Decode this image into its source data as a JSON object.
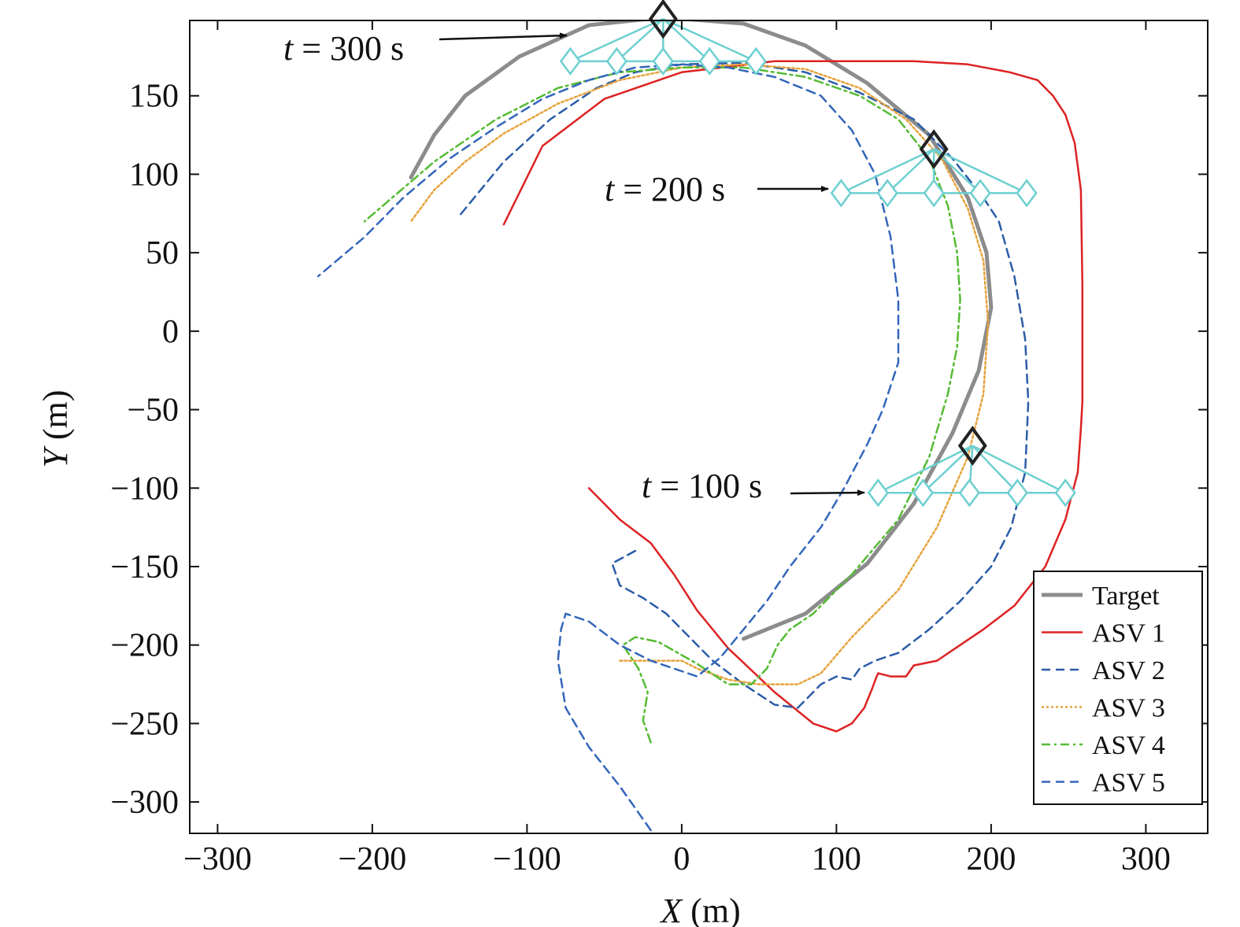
{
  "chart_data": {
    "type": "line",
    "xlabel_var": "X",
    "xlabel_unit": "(m)",
    "ylabel_var": "Y",
    "ylabel_unit": "(m)",
    "xlim": [
      -318,
      340
    ],
    "ylim": [
      -320,
      198
    ],
    "xticks": [
      -300,
      -200,
      -100,
      0,
      100,
      200,
      300
    ],
    "yticks": [
      -300,
      -250,
      -200,
      -150,
      -100,
      -50,
      0,
      50,
      100,
      150
    ],
    "xtick_labels": [
      "−300",
      "−200",
      "−100",
      "0",
      "100",
      "200",
      "300"
    ],
    "ytick_labels": [
      "−300",
      "−250",
      "−200",
      "−150",
      "−100",
      "−50",
      "0",
      "50",
      "100",
      "150"
    ],
    "legend_position": "bottom-right",
    "grid": false,
    "series": [
      {
        "name": "Target",
        "color": "#8c8c8c",
        "dash": "",
        "width": 5,
        "x": [
          40,
          80,
          120,
          150,
          175,
          192,
          200,
          197,
          185,
          160,
          120,
          80,
          40,
          -12,
          -60,
          -105,
          -140,
          -160,
          -175
        ],
        "y": [
          -196,
          -180,
          -148,
          -110,
          -65,
          -25,
          15,
          50,
          85,
          125,
          158,
          182,
          196,
          200,
          195,
          175,
          150,
          125,
          98
        ]
      },
      {
        "name": "ASV 1",
        "color": "#dd2222",
        "dash": "",
        "width": 2.5,
        "x": [
          -60,
          -40,
          -20,
          -5,
          10,
          30,
          60,
          85,
          100,
          110,
          118,
          123,
          126,
          127,
          135,
          145,
          150,
          155,
          165,
          180,
          195,
          215,
          235,
          248,
          256,
          258,
          259,
          259,
          259,
          258,
          254,
          248,
          240,
          230,
          212,
          185,
          150,
          110,
          60,
          0,
          -50,
          -90,
          -115
        ],
        "y": [
          -100,
          -120,
          -135,
          -155,
          -178,
          -202,
          -230,
          -250,
          -255,
          -250,
          -240,
          -228,
          -220,
          -218,
          -220,
          -220,
          -213,
          -212,
          -210,
          -200,
          -190,
          -175,
          -150,
          -120,
          -90,
          -62,
          -45,
          -20,
          30,
          90,
          120,
          138,
          150,
          160,
          165,
          170,
          172,
          172,
          172,
          165,
          148,
          118,
          68
        ]
      },
      {
        "name": "ASV 2",
        "color": "#2a5ca8",
        "dash": "11,7",
        "width": 2.5,
        "x": [
          -30,
          -45,
          -40,
          -25,
          -10,
          5,
          20,
          40,
          60,
          75,
          90,
          100,
          110,
          115,
          125,
          140,
          160,
          180,
          200,
          213,
          222,
          224,
          222,
          215,
          205,
          195,
          175,
          150,
          115,
          80,
          40,
          0,
          -30,
          -55,
          -85,
          -115,
          -145
        ],
        "y": [
          -140,
          -148,
          -162,
          -170,
          -180,
          -195,
          -210,
          -225,
          -238,
          -240,
          -225,
          -220,
          -222,
          -215,
          -210,
          -205,
          -190,
          -172,
          -150,
          -125,
          -90,
          -45,
          -5,
          35,
          70,
          85,
          110,
          135,
          152,
          165,
          171,
          170,
          165,
          155,
          135,
          108,
          72
        ]
      },
      {
        "name": "ASV 3",
        "color": "#e6a23c",
        "dash": "3,3",
        "width": 2.5,
        "x": [
          -40,
          -10,
          0,
          10,
          30,
          50,
          75,
          90,
          110,
          140,
          165,
          185,
          195,
          198,
          195,
          185,
          168,
          145,
          115,
          80,
          40,
          0,
          -40,
          -80,
          -115,
          -140,
          -160,
          -175
        ],
        "y": [
          -210,
          -210,
          -210,
          -215,
          -222,
          -225,
          -225,
          -218,
          -195,
          -165,
          -125,
          -80,
          -40,
          5,
          45,
          78,
          110,
          135,
          155,
          167,
          170,
          168,
          160,
          145,
          126,
          108,
          90,
          70
        ]
      },
      {
        "name": "ASV 4",
        "color": "#55bb33",
        "dash": "11,5,3,5",
        "width": 2.5,
        "x": [
          -20,
          -25,
          -22,
          -28,
          -38,
          -30,
          -15,
          10,
          30,
          45,
          55,
          62,
          70,
          85,
          110,
          140,
          160,
          172,
          178,
          180,
          178,
          172,
          160,
          140,
          115,
          80,
          40,
          0,
          -40,
          -80,
          -120,
          -160,
          -205
        ],
        "y": [
          -262,
          -248,
          -230,
          -215,
          -200,
          -195,
          -198,
          -212,
          -225,
          -225,
          -215,
          -200,
          -190,
          -180,
          -155,
          -120,
          -80,
          -40,
          -10,
          20,
          50,
          80,
          110,
          135,
          150,
          162,
          168,
          168,
          165,
          155,
          135,
          108,
          70
        ]
      },
      {
        "name": "ASV 5",
        "color": "#3366bb",
        "dash": "11,7",
        "width": 2.5,
        "x": [
          -20,
          -40,
          -60,
          -75,
          -80,
          -78,
          -75,
          -60,
          -40,
          -20,
          10,
          25,
          40,
          55,
          70,
          90,
          105,
          120,
          130,
          140,
          140,
          135,
          125,
          110,
          90,
          60,
          30,
          0,
          -30,
          -60,
          -90,
          -120,
          -150,
          -180,
          -205,
          -235
        ],
        "y": [
          -318,
          -290,
          -265,
          -240,
          -210,
          -190,
          -180,
          -185,
          -200,
          -210,
          -220,
          -208,
          -190,
          -172,
          -150,
          -125,
          -100,
          -72,
          -50,
          -20,
          20,
          60,
          100,
          128,
          150,
          162,
          168,
          170,
          168,
          160,
          148,
          130,
          110,
          85,
          60,
          35
        ]
      }
    ],
    "formations": [
      {
        "label": "t = 100 s",
        "leader": [
          188,
          -73
        ],
        "followers": [
          [
            127,
            -103
          ],
          [
            156,
            -103
          ],
          [
            186,
            -103
          ],
          [
            217,
            -103
          ],
          [
            248,
            -103
          ]
        ]
      },
      {
        "label": "t = 200 s",
        "leader": [
          163,
          116
        ],
        "followers": [
          [
            103,
            88
          ],
          [
            133,
            88
          ],
          [
            163,
            88
          ],
          [
            193,
            88
          ],
          [
            223,
            88
          ]
        ]
      },
      {
        "label": "t = 300 s",
        "leader": [
          -12,
          199
        ],
        "followers": [
          [
            -72,
            172
          ],
          [
            -42,
            172
          ],
          [
            -12,
            172
          ],
          [
            18,
            172
          ],
          [
            48,
            172
          ]
        ]
      }
    ],
    "annotations": [
      {
        "t": "t",
        "rest": " = 300 s"
      },
      {
        "t": "t",
        "rest": " = 200 s"
      },
      {
        "t": "t",
        "rest": " = 100 s"
      }
    ]
  }
}
